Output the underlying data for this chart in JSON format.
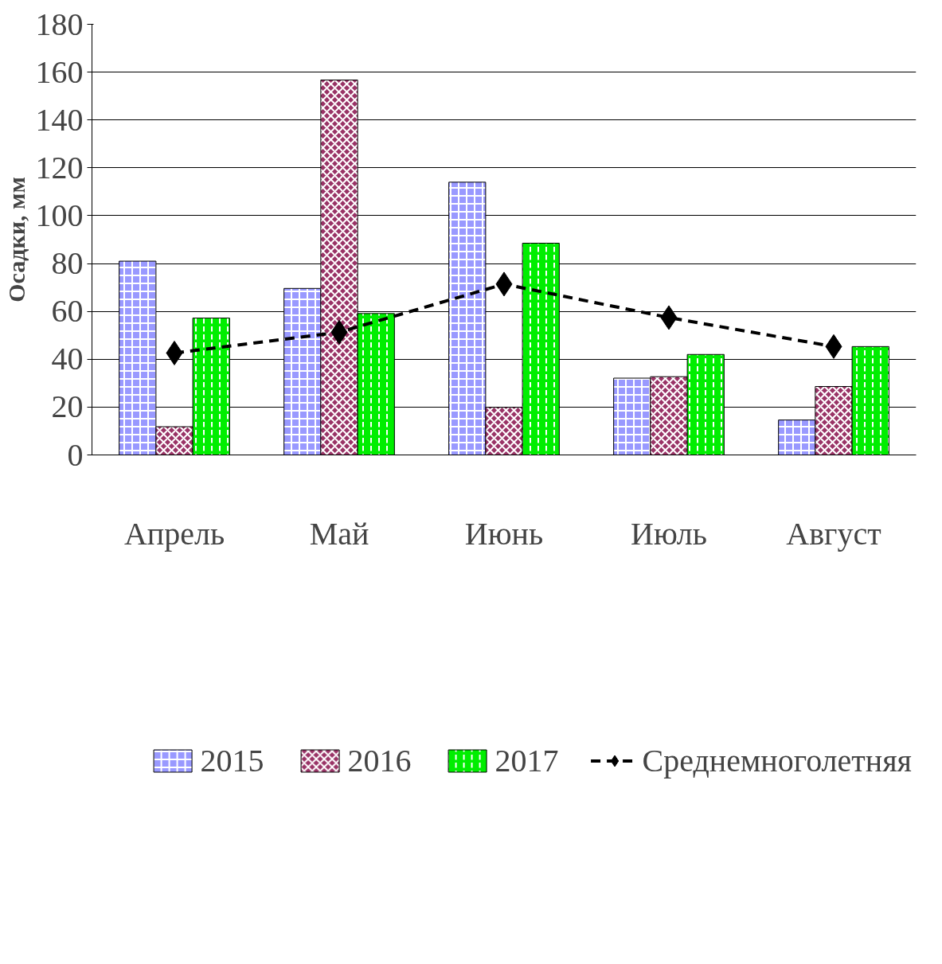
{
  "chart_data": {
    "type": "bar",
    "ylabel": "Осадки, мм",
    "categories": [
      "Апрель",
      "Май",
      "Июнь",
      "Июль",
      "Август"
    ],
    "series": [
      {
        "name": "2015",
        "color": "#9999ff",
        "values": [
          81,
          69.6,
          114,
          32.1,
          14.6
        ]
      },
      {
        "name": "2016",
        "color": "#993366",
        "values": [
          11.8,
          156.7,
          19.9,
          32.7,
          28.6
        ]
      },
      {
        "name": "2017",
        "color": "#00ee00",
        "values": [
          57.2,
          59.1,
          88.5,
          42,
          45.3
        ]
      },
      {
        "name": "Среднемноголетняя",
        "type": "line",
        "color": "#000000",
        "marker": "diamond",
        "line_style": "dashed",
        "values": [
          42.6,
          51.3,
          71.4,
          57.4,
          45.3
        ]
      }
    ],
    "ylim": [
      0,
      180
    ],
    "yticks": [
      0,
      20,
      40,
      60,
      80,
      100,
      120,
      140,
      160,
      180
    ],
    "grid": "y",
    "legend": "bottom"
  }
}
